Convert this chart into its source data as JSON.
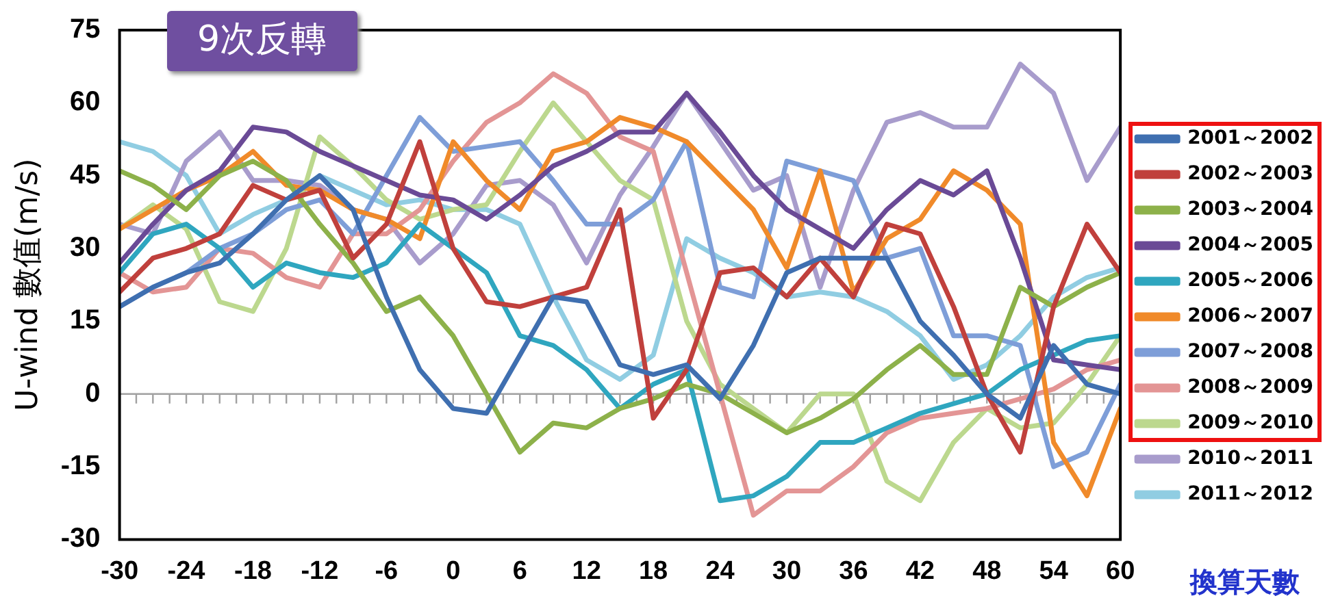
{
  "chart_data": {
    "type": "line",
    "title": "9次反轉",
    "xlabel": "換算天數",
    "ylabel": "U-wind 數值(m/s)",
    "x": [
      -30,
      -27,
      -24,
      -21,
      -18,
      -15,
      -12,
      -9,
      -6,
      -3,
      0,
      3,
      6,
      9,
      12,
      15,
      18,
      21,
      24,
      27,
      30,
      33,
      36,
      39,
      42,
      45,
      48,
      51,
      54,
      57,
      60
    ],
    "xlim": [
      -30,
      60
    ],
    "xticks": [
      -30,
      -24,
      -18,
      -12,
      -6,
      0,
      6,
      12,
      18,
      24,
      30,
      36,
      42,
      48,
      54,
      60
    ],
    "ylim": [
      -30,
      75
    ],
    "yticks": [
      -30,
      -15,
      0,
      15,
      30,
      45,
      60,
      75
    ],
    "grid": false,
    "legend": "right",
    "marker": "none",
    "line_style": "solid",
    "ref_lines": [
      {
        "axis": "y",
        "value": 0,
        "color": "#a0a0a0"
      }
    ],
    "series": [
      {
        "name": "2001～2002",
        "color": "#3f6fb0",
        "values": [
          18,
          22,
          25,
          27,
          33,
          40,
          45,
          38,
          20,
          5,
          -3,
          -4,
          8,
          20,
          19,
          6,
          4,
          6,
          -1,
          10,
          25,
          28,
          28,
          28,
          15,
          8,
          0,
          -5,
          10,
          2,
          0
        ]
      },
      {
        "name": "2002～2003",
        "color": "#c0403c",
        "values": [
          21,
          28,
          30,
          33,
          43,
          40,
          42,
          28,
          35,
          52,
          30,
          19,
          18,
          20,
          22,
          38,
          -5,
          5,
          25,
          26,
          20,
          28,
          20,
          35,
          33,
          18,
          0,
          -12,
          18,
          35,
          25
        ]
      },
      {
        "name": "2003～2004",
        "color": "#8db14a",
        "values": [
          46,
          43,
          38,
          45,
          48,
          44,
          35,
          27,
          17,
          20,
          12,
          0,
          -12,
          -6,
          -7,
          -3,
          -1,
          2,
          0,
          -4,
          -8,
          -5,
          -1,
          5,
          10,
          4,
          4,
          22,
          18,
          22,
          25
        ]
      },
      {
        "name": "2004～2005",
        "color": "#6a4a96",
        "values": [
          27,
          35,
          42,
          46,
          55,
          54,
          50,
          47,
          44,
          41,
          40,
          36,
          41,
          47,
          50,
          54,
          54,
          62,
          54,
          45,
          38,
          34,
          30,
          38,
          44,
          41,
          46,
          28,
          7,
          6,
          5
        ]
      },
      {
        "name": "2005～2006",
        "color": "#2fa6bf",
        "values": [
          25,
          33,
          35,
          30,
          22,
          27,
          25,
          24,
          27,
          35,
          30,
          25,
          12,
          10,
          5,
          -3,
          2,
          5,
          -22,
          -21,
          -17,
          -10,
          -10,
          -7,
          -4,
          -2,
          0,
          5,
          8,
          11,
          12
        ]
      },
      {
        "name": "2006～2007",
        "color": "#f08a2a",
        "values": [
          34,
          38,
          42,
          45,
          50,
          43,
          42,
          38,
          36,
          32,
          52,
          44,
          38,
          50,
          52,
          57,
          55,
          52,
          45,
          38,
          26,
          46,
          21,
          32,
          36,
          46,
          42,
          35,
          -10,
          -21,
          -3
        ]
      },
      {
        "name": "2007～2008",
        "color": "#7e9ed8",
        "values": [
          18,
          22,
          25,
          30,
          33,
          38,
          40,
          33,
          45,
          57,
          50,
          51,
          52,
          44,
          35,
          35,
          40,
          52,
          22,
          20,
          48,
          46,
          44,
          28,
          30,
          12,
          12,
          10,
          -15,
          -12,
          2
        ]
      },
      {
        "name": "2008～2009",
        "color": "#e39595",
        "values": [
          25,
          21,
          22,
          30,
          29,
          24,
          22,
          33,
          33,
          38,
          48,
          56,
          60,
          66,
          62,
          53,
          50,
          25,
          0,
          -25,
          -20,
          -20,
          -15,
          -8,
          -5,
          -4,
          -3,
          -1,
          1,
          5,
          7
        ]
      },
      {
        "name": "2009～2010",
        "color": "#bcd88e",
        "values": [
          34,
          39,
          34,
          19,
          17,
          30,
          53,
          47,
          40,
          36,
          38,
          39,
          50,
          60,
          52,
          44,
          40,
          15,
          2,
          -3,
          -8,
          0,
          0,
          -18,
          -22,
          -10,
          -3,
          -7,
          -6,
          2,
          12
        ]
      },
      {
        "name": "2010～2011",
        "color": "#a89ccc",
        "values": [
          35,
          33,
          48,
          54,
          44,
          44,
          43,
          38,
          36,
          27,
          33,
          43,
          44,
          39,
          27,
          41,
          51,
          62,
          52,
          42,
          45,
          22,
          42,
          56,
          58,
          55,
          55,
          68,
          62,
          44,
          55
        ]
      },
      {
        "name": "2011～2012",
        "color": "#90cde2",
        "values": [
          52,
          50,
          45,
          33,
          37,
          40,
          45,
          42,
          39,
          40,
          38,
          38,
          35,
          20,
          7,
          3,
          8,
          32,
          28,
          25,
          20,
          21,
          20,
          17,
          12,
          3,
          6,
          12,
          20,
          24,
          26
        ]
      }
    ]
  }
}
